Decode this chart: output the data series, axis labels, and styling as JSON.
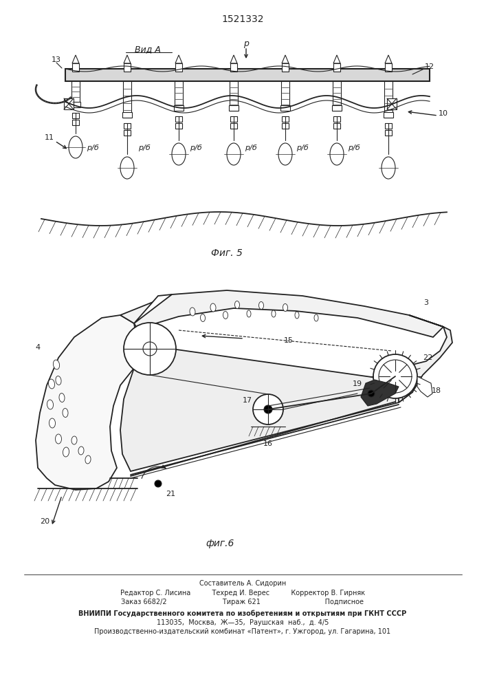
{
  "patent_number": "1521332",
  "fig5_caption": "Фиг. 5",
  "fig6_caption": "фиг.6",
  "view_label": "Вид А",
  "footer_lines": [
    "Составитель А. Сидорин",
    "Редактор С. Лисина          Техред И. Верес          Корректор В. Гирняк",
    "Заказ 6682/2                          Тираж 621                              Подписное",
    "ВНИИПИ Государственного комитета по изобретениям и открытиям при ГКНТ СССР",
    "113035,  Москва,  Ж—35,  Раушская  наб.,  д. 4/5",
    "Производственно-издательский комбинат «Патент», г. Ужгород, ул. Гагарина, 101"
  ],
  "bg_color": "#ffffff",
  "line_color": "#222222"
}
